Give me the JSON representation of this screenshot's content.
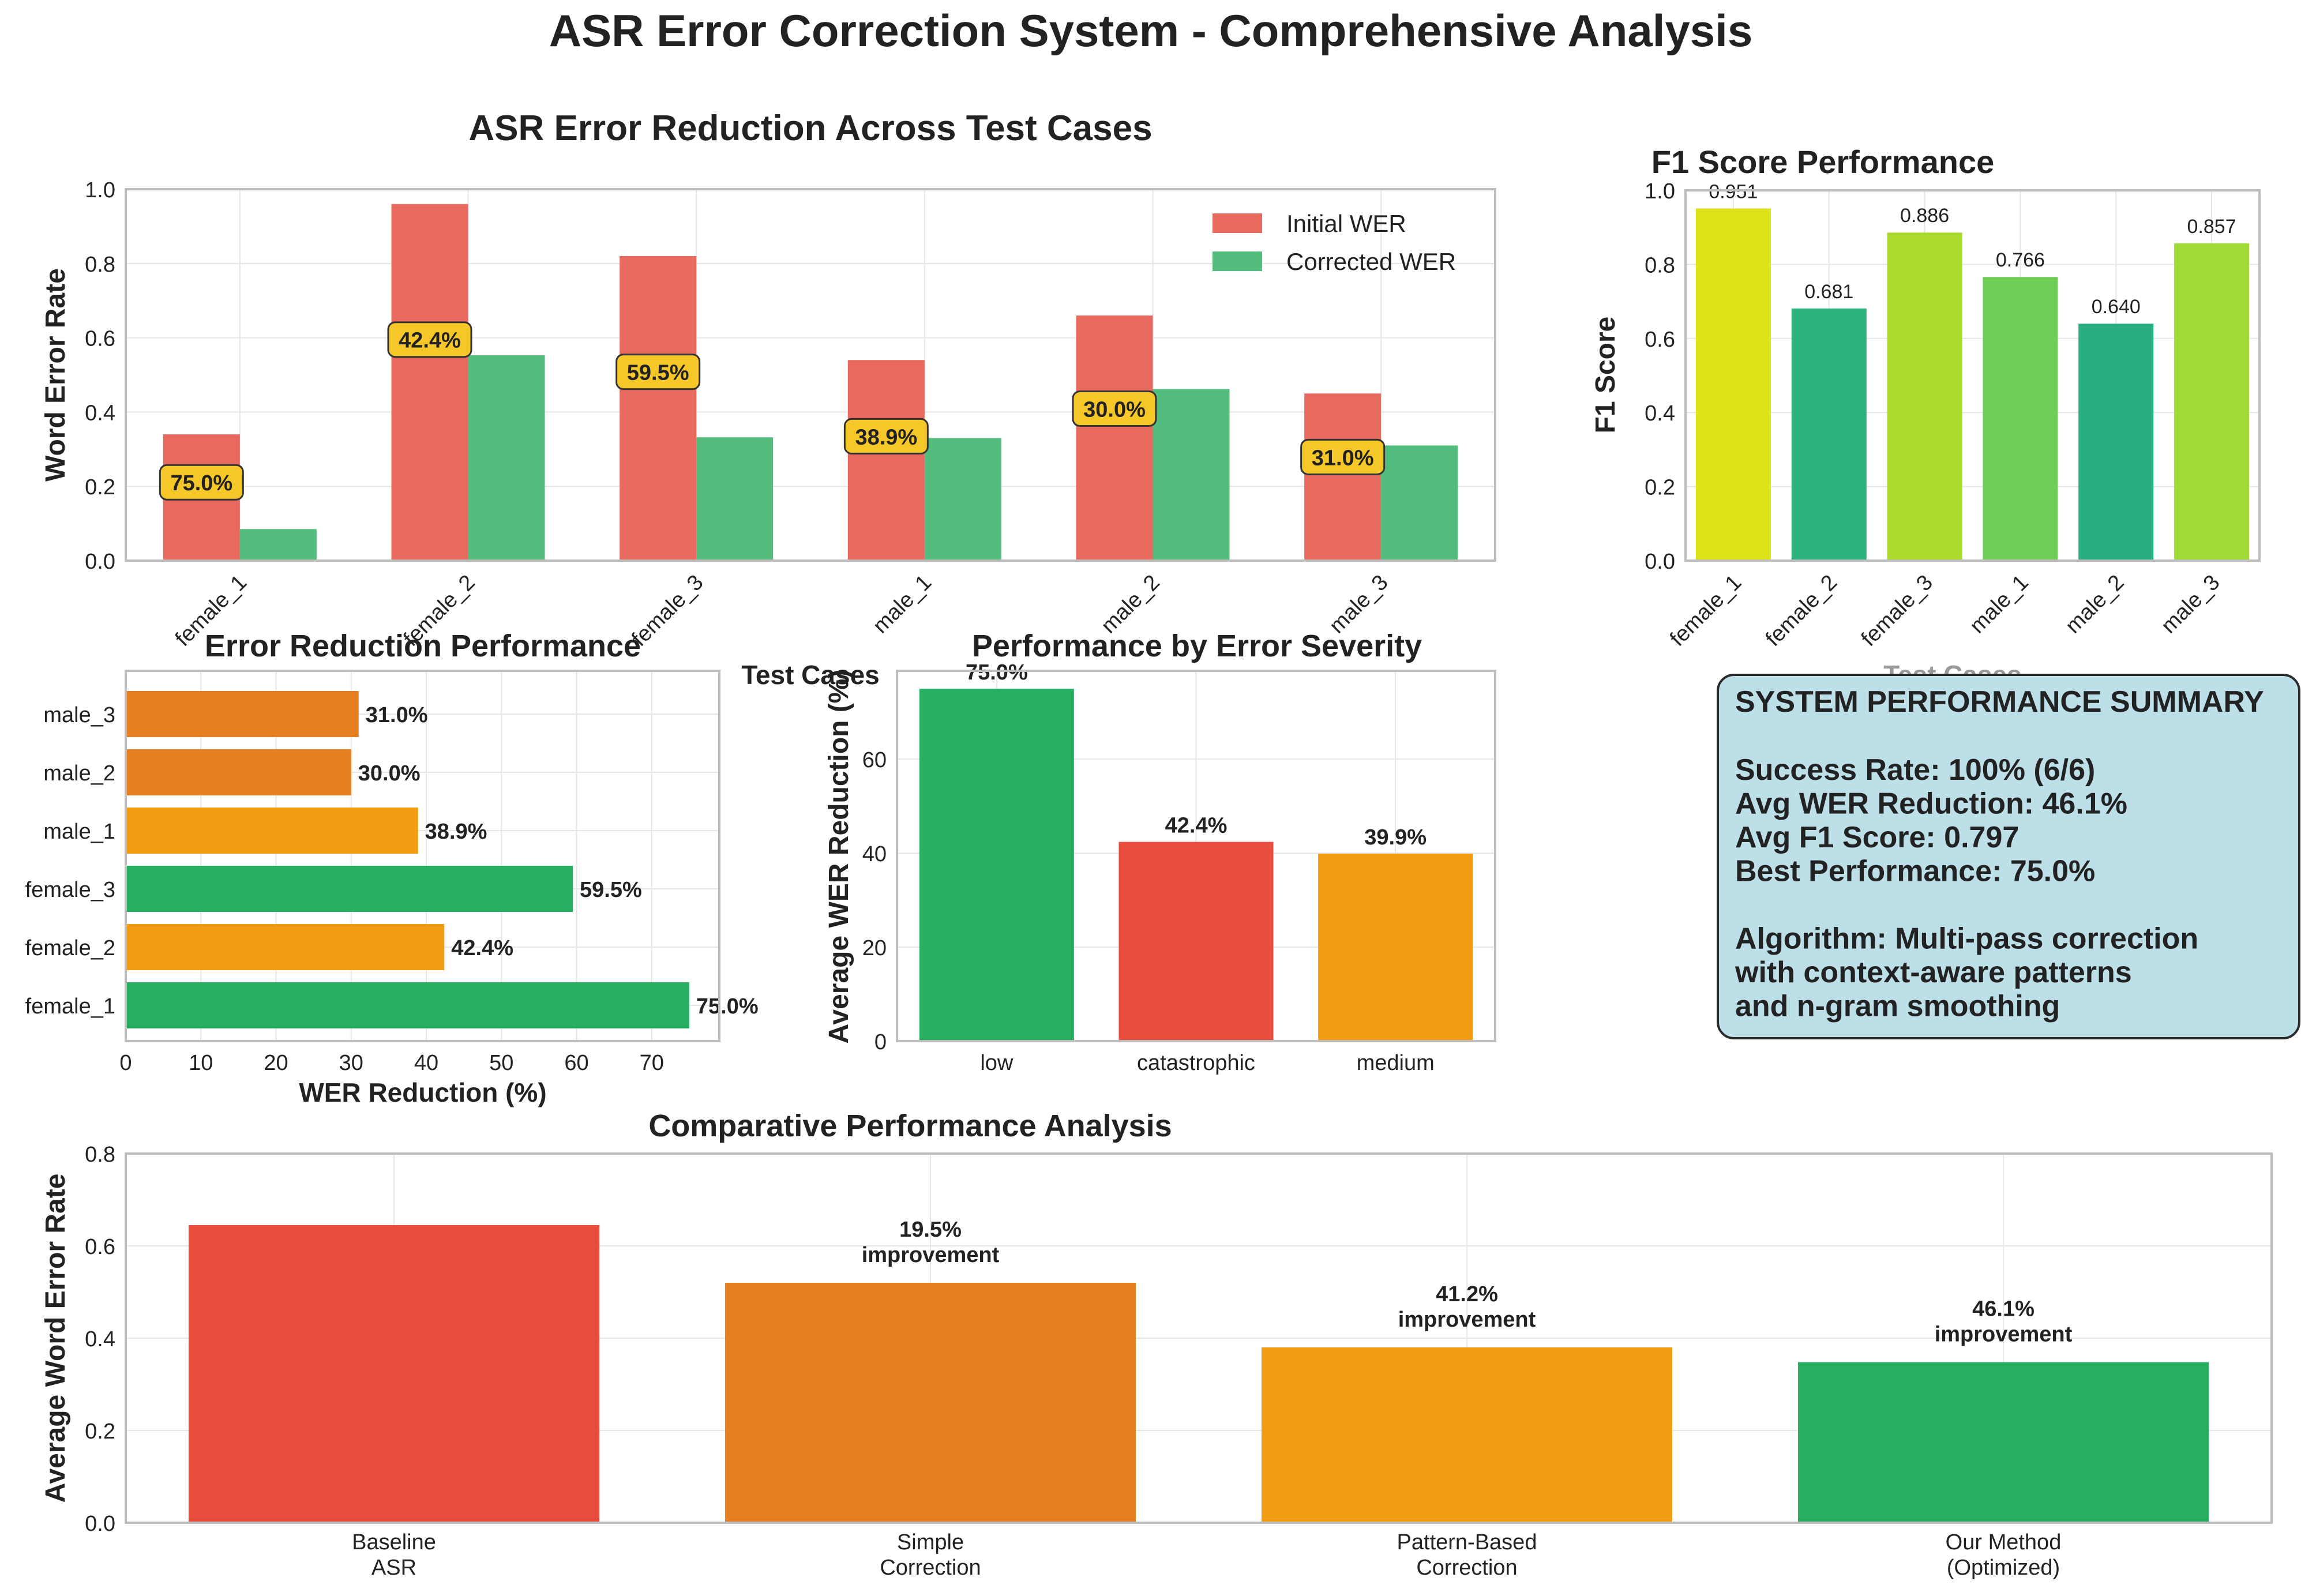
{
  "figure_title": "ASR Error Correction System - Comprehensive Analysis",
  "colors": {
    "initial": "#e8695d",
    "corrected": "#53bd7e",
    "badge_bg": "#f5c729",
    "grid": "#e6e6e6",
    "axis": "#bdbdbd",
    "summary_bg": "#bcdfe8",
    "red": "#e74c3c",
    "dark_orange": "#e67e22",
    "orange": "#f39c12",
    "green": "#27ae60"
  },
  "summary": {
    "title": "SYSTEM PERFORMANCE SUMMARY",
    "lines": [
      "Success Rate: 100% (6/6)",
      "Avg WER Reduction: 46.1%",
      "Avg F1 Score: 0.797",
      "Best Performance: 75.0%",
      "",
      "Algorithm: Multi-pass correction",
      "with context-aware patterns",
      "and n-gram smoothing"
    ]
  },
  "chart_data": [
    {
      "id": "wer",
      "type": "bar",
      "title": "ASR Error Reduction Across Test Cases",
      "xlabel": "Test Cases",
      "ylabel": "Word Error Rate",
      "ylim": [
        0,
        1.0
      ],
      "yticks": [
        "0.0",
        "0.2",
        "0.4",
        "0.6",
        "0.8",
        "1.0"
      ],
      "categories": [
        "female_1",
        "female_2",
        "female_3",
        "male_1",
        "male_2",
        "male_3"
      ],
      "series": [
        {
          "name": "Initial WER",
          "color": "#e8695d",
          "values": [
            0.34,
            0.96,
            0.82,
            0.54,
            0.66,
            0.45
          ]
        },
        {
          "name": "Corrected WER",
          "color": "#53bd7e",
          "values": [
            0.085,
            0.553,
            0.332,
            0.33,
            0.462,
            0.31
          ]
        }
      ],
      "badges": [
        "75.0%",
        "42.4%",
        "59.5%",
        "38.9%",
        "30.0%",
        "31.0%"
      ],
      "legend": "top-right",
      "grid": true
    },
    {
      "id": "f1",
      "type": "bar",
      "title": "F1 Score Performance",
      "xlabel": "Test Cases",
      "ylabel": "F1 Score",
      "ylim": [
        0,
        1.0
      ],
      "yticks": [
        "0.0",
        "0.2",
        "0.4",
        "0.6",
        "0.8",
        "1.0"
      ],
      "categories": [
        "female_1",
        "female_2",
        "female_3",
        "male_1",
        "male_2",
        "male_3"
      ],
      "values": [
        0.951,
        0.681,
        0.886,
        0.766,
        0.64,
        0.857
      ],
      "labels": [
        "0.951",
        "0.681",
        "0.886",
        "0.766",
        "0.640",
        "0.857"
      ],
      "colors": [
        "#dde318",
        "#2db27d",
        "#addc30",
        "#6ece58",
        "#29af7f",
        "#a2da37"
      ],
      "grid": true
    },
    {
      "id": "reduction",
      "type": "bar",
      "orientation": "horizontal",
      "title": "Error Reduction Performance",
      "xlabel": "WER Reduction (%)",
      "xlim": [
        0,
        79
      ],
      "xticks": [
        "0",
        "10",
        "20",
        "30",
        "40",
        "50",
        "60",
        "70"
      ],
      "categories": [
        "female_1",
        "female_2",
        "female_3",
        "male_1",
        "male_2",
        "male_3"
      ],
      "values": [
        75.0,
        42.4,
        59.5,
        38.9,
        30.0,
        31.0
      ],
      "labels": [
        "75.0%",
        "42.4%",
        "59.5%",
        "38.9%",
        "30.0%",
        "31.0%"
      ],
      "colors": [
        "#27ae60",
        "#f39c12",
        "#27ae60",
        "#f39c12",
        "#e67e22",
        "#e67e22"
      ],
      "grid": true
    },
    {
      "id": "severity",
      "type": "bar",
      "title": "Performance by Error Severity",
      "ylabel": "Average WER Reduction (%)",
      "ylim": [
        0,
        78.8
      ],
      "yticks": [
        "0",
        "20",
        "40",
        "60"
      ],
      "categories": [
        "low",
        "catastrophic",
        "medium"
      ],
      "values": [
        75.0,
        42.4,
        39.9
      ],
      "labels": [
        "75.0%",
        "42.4%",
        "39.9%"
      ],
      "colors": [
        "#27ae60",
        "#e74c3c",
        "#f39c12"
      ],
      "grid": true
    },
    {
      "id": "compare",
      "type": "bar",
      "title": "Comparative Performance Analysis",
      "ylabel": "Average Word Error Rate",
      "ylim": [
        0,
        0.8
      ],
      "yticks": [
        "0.0",
        "0.2",
        "0.4",
        "0.6",
        "0.8"
      ],
      "categories": [
        [
          "Baseline",
          "ASR"
        ],
        [
          "Simple",
          "Correction"
        ],
        [
          "Pattern-Based",
          "Correction"
        ],
        [
          "Our Method",
          "(Optimized)"
        ]
      ],
      "values": [
        0.645,
        0.52,
        0.38,
        0.348
      ],
      "annotations": [
        null,
        [
          "19.5%",
          "improvement"
        ],
        [
          "41.2%",
          "improvement"
        ],
        [
          "46.1%",
          "improvement"
        ]
      ],
      "colors": [
        "#e74c3c",
        "#e67e22",
        "#f39c12",
        "#27ae60"
      ],
      "grid": true
    }
  ]
}
